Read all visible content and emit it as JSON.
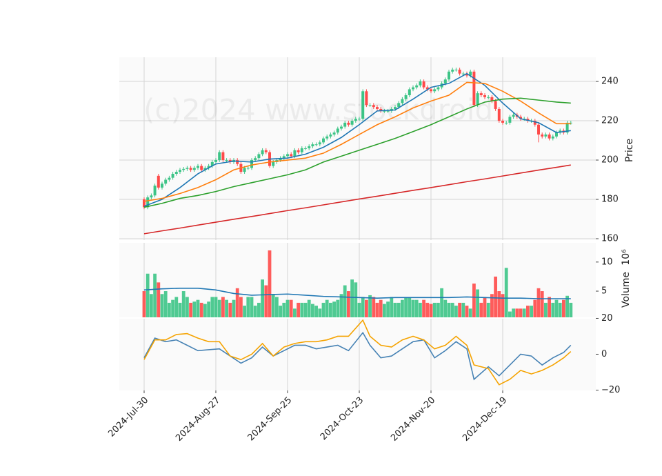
{
  "chart_data": [
    {
      "type": "candlestick",
      "ylabel": "Price",
      "watermark": "(c)2024 www.stockdroid",
      "up_color": "#3cc486",
      "down_color": "#fe4a49",
      "ylim": [
        159.3,
        252.3
      ],
      "yticks": [
        160,
        180,
        200,
        220,
        240
      ],
      "grid": true,
      "open": [
        180,
        176,
        181,
        182,
        192,
        186,
        188,
        190,
        191,
        193,
        194,
        195,
        195.5,
        196,
        195,
        196,
        197,
        195,
        196,
        197,
        199,
        200,
        204,
        200,
        200,
        199,
        200,
        198,
        194,
        196,
        196,
        200,
        201,
        203,
        205,
        204,
        197,
        199,
        200,
        201,
        202,
        203,
        202,
        205,
        204,
        206,
        206,
        207,
        208,
        208,
        209,
        211,
        212,
        213,
        214,
        216,
        217,
        219,
        218,
        220,
        221,
        221,
        235,
        228,
        228,
        227,
        226,
        225,
        225,
        225,
        226,
        227,
        229,
        231,
        233,
        236,
        237,
        238,
        240,
        237,
        236,
        235,
        236,
        237,
        239,
        241,
        245,
        246,
        246,
        244,
        244,
        243,
        245,
        228,
        234,
        233,
        232,
        232,
        230,
        226,
        220,
        219,
        219,
        222,
        223,
        222,
        221,
        221,
        220,
        220,
        218,
        213,
        212,
        213,
        211,
        212,
        214,
        215,
        214,
        219
      ],
      "high": [
        181,
        182,
        183,
        188,
        193,
        189,
        191,
        192,
        194,
        195,
        196,
        196.5,
        197,
        197,
        197,
        198,
        198,
        197,
        198,
        200,
        201,
        205,
        205,
        201,
        201,
        201,
        201,
        199,
        197,
        197,
        201,
        202,
        204,
        206,
        206,
        205,
        200,
        201,
        202,
        203,
        204,
        204,
        206,
        206,
        207,
        207,
        208,
        209,
        209,
        210,
        212,
        213,
        214,
        215,
        217,
        218,
        220,
        220,
        221,
        222,
        222,
        236,
        236,
        229,
        229,
        228,
        227,
        226,
        226,
        227,
        228,
        230,
        232,
        234,
        237,
        238,
        239,
        241,
        241,
        238,
        237,
        237,
        238,
        240,
        242,
        246,
        247,
        247,
        247,
        245,
        245,
        246,
        246,
        235,
        235,
        234,
        233,
        233,
        231,
        227,
        221,
        220,
        223,
        224,
        224,
        223,
        222,
        222,
        221,
        221,
        219,
        214,
        214,
        214,
        213,
        215,
        216,
        216,
        220,
        220
      ],
      "low": [
        175,
        175,
        180,
        181,
        185,
        185,
        187,
        189,
        190,
        192,
        193,
        194,
        194.5,
        194,
        194,
        195,
        194,
        194,
        195,
        196,
        198,
        199,
        199,
        199,
        198,
        198,
        197,
        193,
        193,
        195,
        195,
        199,
        200,
        202,
        203,
        196,
        196,
        198,
        199,
        200,
        201,
        201,
        201,
        203,
        203,
        205,
        205,
        206,
        207,
        207,
        208,
        210,
        211,
        212,
        213,
        215,
        216,
        217,
        217,
        219,
        220,
        220,
        227,
        227,
        226,
        225,
        224,
        224,
        224,
        224,
        225,
        226,
        228,
        230,
        232,
        235,
        236,
        237,
        236,
        235,
        234,
        234,
        235,
        236,
        238,
        240,
        244,
        245,
        243,
        243,
        242,
        242,
        227,
        227,
        232,
        231,
        231,
        229,
        225,
        219,
        218,
        218,
        218,
        221,
        221,
        220,
        220,
        219,
        219,
        217,
        209,
        211,
        211,
        210,
        210,
        211,
        213,
        213,
        213,
        218
      ],
      "close": [
        176,
        181,
        182,
        187,
        186,
        188,
        190,
        191,
        193,
        194,
        195,
        195.5,
        196,
        195,
        196,
        197,
        195,
        196,
        197,
        199,
        200,
        204,
        200,
        200,
        199,
        200,
        198,
        194,
        196,
        196,
        200,
        201,
        203,
        205,
        204,
        197,
        199,
        200,
        201,
        202,
        203,
        202,
        205,
        204,
        206,
        206,
        207,
        208,
        208,
        209,
        211,
        212,
        213,
        214,
        216,
        217,
        219,
        218,
        220,
        221,
        221,
        235,
        228,
        228,
        227,
        226,
        225,
        225,
        225,
        226,
        227,
        229,
        231,
        233,
        236,
        237,
        238,
        240,
        237,
        236,
        235,
        236,
        237,
        239,
        241,
        245,
        246,
        246,
        244,
        244,
        243,
        245,
        228,
        234,
        233,
        232,
        232,
        230,
        226,
        220,
        219,
        219,
        222,
        223,
        222,
        221,
        221,
        220,
        220,
        218,
        213,
        212,
        213,
        211,
        212,
        214,
        215,
        214,
        219,
        219
      ],
      "series": [
        {
          "color": "#1f77b4",
          "x": [
            0,
            5,
            10,
            15,
            20,
            25,
            30,
            35,
            40,
            45,
            50,
            55,
            60,
            65,
            70,
            75,
            80,
            85,
            90,
            95,
            100,
            105,
            110,
            115,
            119
          ],
          "values": [
            176.5,
            180,
            186,
            193,
            198,
            199.5,
            199,
            200.5,
            201,
            203,
            206.5,
            211.5,
            218,
            225,
            225.5,
            231,
            237,
            239,
            244,
            238,
            229,
            221,
            219,
            214,
            215
          ]
        },
        {
          "color": "#ff7f0e",
          "x": [
            0,
            5,
            10,
            15,
            20,
            25,
            30,
            35,
            40,
            45,
            50,
            55,
            60,
            65,
            70,
            75,
            80,
            85,
            90,
            95,
            100,
            105,
            110,
            115,
            119
          ],
          "values": [
            179,
            180.5,
            183,
            186,
            190,
            195,
            197.5,
            199,
            200,
            201,
            203.5,
            208,
            213,
            218,
            222,
            226.5,
            230,
            233,
            239.5,
            239,
            235,
            230,
            224,
            218.5,
            218.5
          ]
        },
        {
          "color": "#2ca02c",
          "x": [
            0,
            5,
            10,
            15,
            20,
            25,
            30,
            35,
            40,
            45,
            50,
            55,
            60,
            65,
            70,
            75,
            80,
            85,
            90,
            95,
            100,
            105,
            110,
            115,
            119
          ],
          "values": [
            176,
            178,
            180.5,
            182,
            184,
            186.5,
            188.5,
            190.5,
            192.5,
            195,
            199,
            202,
            205,
            208,
            211,
            214.5,
            218,
            222,
            226,
            229.5,
            231,
            231.5,
            230.5,
            229.5,
            229
          ]
        },
        {
          "color": "#d62728",
          "x": [
            0,
            5,
            10,
            15,
            20,
            25,
            30,
            35,
            40,
            45,
            50,
            55,
            60,
            65,
            70,
            75,
            80,
            85,
            90,
            95,
            100,
            105,
            110,
            115,
            119
          ],
          "values": [
            162.5,
            164,
            165.4,
            166.9,
            168.4,
            169.9,
            171.3,
            172.8,
            174.3,
            175.7,
            177.2,
            178.7,
            180.2,
            181.6,
            183.1,
            184.6,
            186,
            187.5,
            189,
            190.4,
            191.9,
            193.4,
            194.9,
            196.3,
            197.5
          ]
        }
      ]
    },
    {
      "type": "bar",
      "ylabel": "Volume",
      "offset_text": "10⁶",
      "up_color": "#3cc486",
      "down_color": "#fe4a49",
      "ylim": [
        0.5,
        13.3
      ],
      "yticks": [
        5,
        10
      ],
      "grid": false,
      "values": [
        5,
        8,
        4.5,
        8,
        6.5,
        4.5,
        5,
        3,
        3.5,
        4,
        3,
        5,
        4,
        3,
        3.2,
        3.5,
        3,
        2.8,
        3.2,
        4,
        4,
        3.5,
        4,
        3.5,
        3,
        3.5,
        5.5,
        4,
        2.5,
        4,
        4,
        2.5,
        3,
        7,
        6,
        12,
        4.5,
        4,
        2.5,
        3,
        3.5,
        3.5,
        2,
        3,
        3,
        3,
        3.5,
        2.8,
        2.5,
        2,
        3,
        3.5,
        3,
        3.2,
        3.5,
        4.5,
        6,
        5,
        7,
        6.5,
        3,
        4,
        3.5,
        4.3,
        4,
        3,
        3.5,
        2.8,
        3.2,
        4,
        3,
        3,
        3.5,
        4,
        4,
        3.5,
        3.5,
        3,
        3.5,
        3,
        2.8,
        3,
        3,
        5.5,
        3.5,
        3,
        3,
        2.5,
        3,
        3,
        2.5,
        2,
        6.3,
        5.3,
        3,
        4,
        3,
        4.5,
        7.5,
        5,
        4.5,
        9,
        1.5,
        2,
        2,
        2,
        2,
        2.5,
        2.5,
        3.5,
        5.5,
        5,
        3,
        4,
        3,
        3.5,
        3,
        3.5,
        4.2,
        3
      ],
      "series": [
        {
          "color": "#1f77b4",
          "x": [
            0,
            5,
            10,
            15,
            20,
            25,
            30,
            35,
            40,
            45,
            50,
            55,
            60,
            65,
            70,
            75,
            80,
            85,
            90,
            95,
            100,
            105,
            110,
            115,
            119
          ],
          "values": [
            5.2,
            5.4,
            5.5,
            5.5,
            5.2,
            4.6,
            4.3,
            4.4,
            4.5,
            4.3,
            4.1,
            4.0,
            3.9,
            3.8,
            3.9,
            3.9,
            3.9,
            3.9,
            4.0,
            3.9,
            3.8,
            3.8,
            3.7,
            3.7,
            3.7
          ]
        }
      ]
    },
    {
      "type": "line",
      "ylim": [
        -20.2,
        19.8
      ],
      "yticks": [
        20,
        0,
        {
          "value": -20,
          "label": "−20"
        }
      ],
      "grid": false,
      "categories": [
        "2024-Jul-30",
        null,
        null,
        null,
        null,
        null,
        null,
        null,
        null,
        null,
        null,
        null,
        null,
        null,
        null,
        null,
        null,
        null,
        null,
        null,
        "2024-Aug-27",
        null,
        null,
        null,
        null,
        null,
        null,
        null,
        null,
        null,
        null,
        null,
        null,
        null,
        null,
        null,
        null,
        null,
        null,
        null,
        "2024-Sep-25",
        null,
        null,
        null,
        null,
        null,
        null,
        null,
        null,
        null,
        null,
        null,
        null,
        null,
        null,
        null,
        null,
        null,
        null,
        null,
        "2024-Oct-23",
        null,
        null,
        null,
        null,
        null,
        null,
        null,
        null,
        null,
        null,
        null,
        null,
        null,
        null,
        null,
        null,
        null,
        null,
        null,
        "2024-Nov-20",
        null,
        null,
        null,
        null,
        null,
        null,
        null,
        null,
        null,
        null,
        null,
        null,
        null,
        null,
        null,
        null,
        null,
        null,
        null,
        "2024-Dec-19",
        null,
        null,
        null,
        null,
        null,
        null,
        null,
        null,
        null,
        null,
        null,
        null,
        null,
        null,
        null,
        null,
        null,
        null,
        null
      ],
      "series": [
        {
          "color": "#4682b4",
          "x": [
            0,
            3,
            6,
            9,
            12,
            15,
            18,
            21,
            24,
            27,
            30,
            33,
            36,
            39,
            42,
            45,
            48,
            51,
            54,
            57,
            61,
            63,
            66,
            69,
            72,
            75,
            78,
            81,
            84,
            87,
            90,
            92,
            96,
            99,
            102,
            105,
            108,
            111,
            114,
            117,
            119
          ],
          "values": [
            -2,
            9,
            7,
            8,
            5,
            2,
            2.5,
            3,
            -1,
            -5,
            -2,
            4,
            -1,
            2,
            5,
            5,
            3,
            4,
            5,
            2,
            12,
            5,
            -2,
            -1,
            3,
            7,
            8,
            -2,
            2,
            7,
            3,
            -14,
            -7,
            -12,
            -6,
            0,
            -1,
            -6,
            -2,
            1,
            5
          ]
        },
        {
          "color": "#f5a300",
          "x": [
            0,
            3,
            6,
            9,
            12,
            15,
            18,
            21,
            24,
            27,
            30,
            33,
            36,
            39,
            42,
            45,
            48,
            51,
            54,
            57,
            61,
            63,
            66,
            69,
            72,
            75,
            78,
            81,
            84,
            87,
            90,
            92,
            96,
            99,
            102,
            105,
            108,
            111,
            114,
            117,
            119
          ],
          "values": [
            -3,
            8,
            8,
            11,
            11.5,
            9,
            7,
            7,
            -1,
            -3,
            0,
            6,
            -1,
            4,
            6,
            7,
            7,
            8,
            10,
            10,
            19,
            10,
            5,
            4,
            8,
            10,
            8,
            3,
            5,
            10,
            5,
            -6,
            -8,
            -17,
            -14,
            -9,
            -11,
            -9,
            -6,
            -2,
            1.5
          ]
        }
      ]
    }
  ]
}
